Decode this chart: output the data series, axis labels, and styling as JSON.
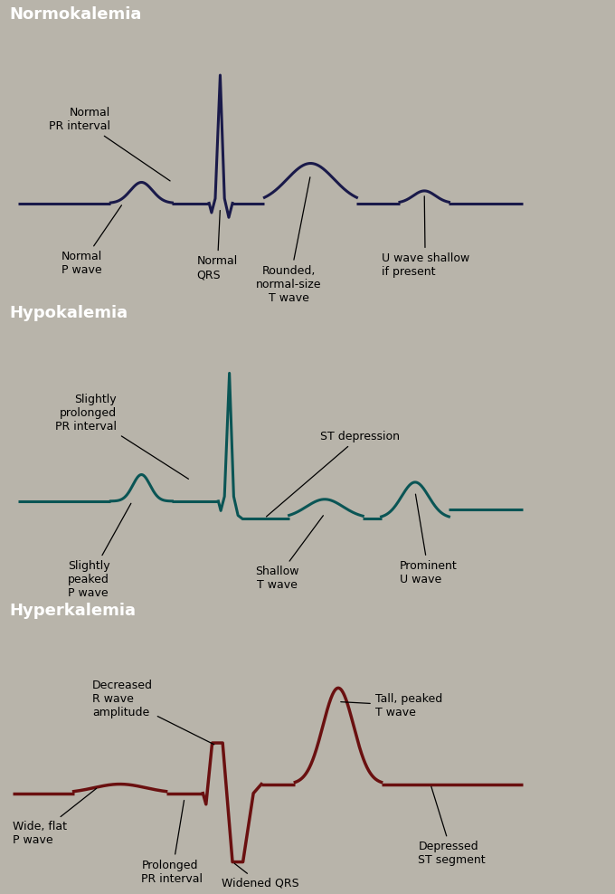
{
  "sections": [
    {
      "name": "Normokalemia",
      "header_color": "#8b8ba0",
      "panel_color": "#ccc9be",
      "ecg_color": "#1a1a4a",
      "ecg_lw": 2.2
    },
    {
      "name": "Hypokalemia",
      "header_color": "#3a8880",
      "panel_color": "#c8ccc8",
      "ecg_color": "#0a5555",
      "ecg_lw": 2.2
    },
    {
      "name": "Hyperkalemia",
      "header_color": "#b07878",
      "panel_color": "#c5bfb8",
      "ecg_color": "#6a1010",
      "ecg_lw": 2.5
    }
  ],
  "fig_bg": "#b8b4aa",
  "header_text_color": "white",
  "header_fontsize": 13,
  "annot_fontsize": 9,
  "annot_color": "black"
}
